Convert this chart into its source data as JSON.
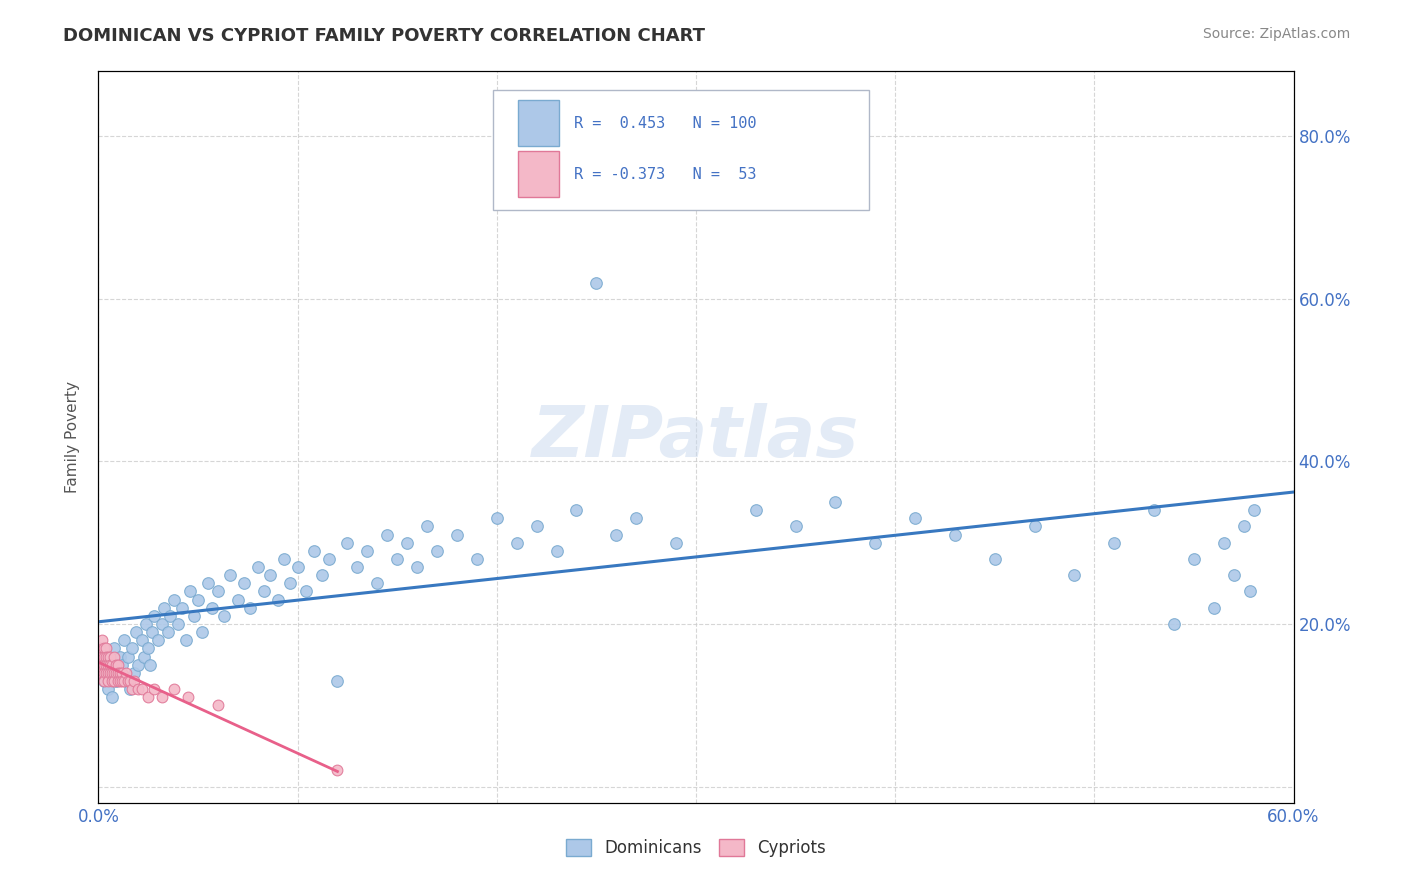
{
  "title": "DOMINICAN VS CYPRIOT FAMILY POVERTY CORRELATION CHART",
  "source": "Source: ZipAtlas.com",
  "ylabel": "Family Poverty",
  "xlim": [
    0.0,
    0.6
  ],
  "ylim": [
    -0.02,
    0.88
  ],
  "dominicans_color": "#adc8e8",
  "dominicans_edge": "#7aaad0",
  "cypriots_color": "#f4b8c8",
  "cypriots_edge": "#e07898",
  "line_dominicans": "#3878c0",
  "line_cypriots": "#e8608a",
  "background_color": "#ffffff"
}
